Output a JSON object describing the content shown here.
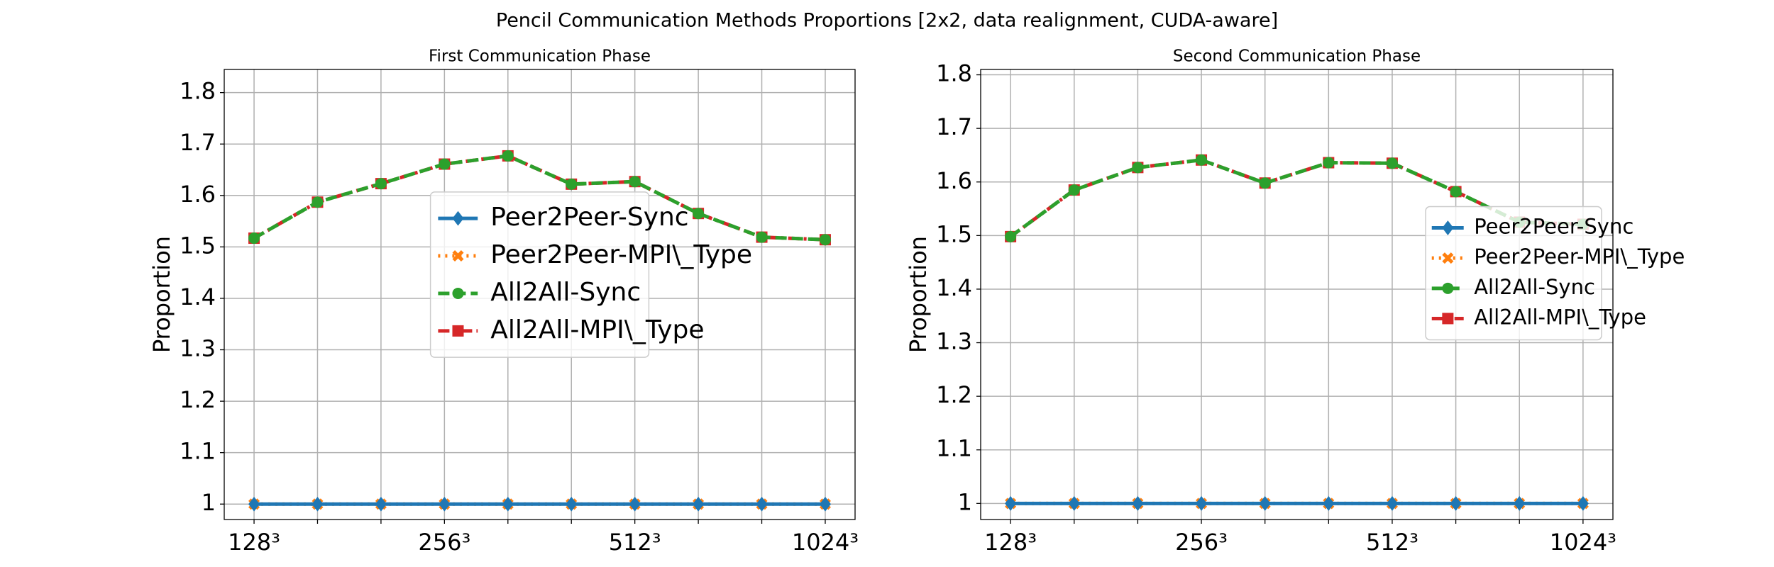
{
  "title": "Pencil Communication Methods Proportions [2x2, data realignment, CUDA-aware]",
  "chart_data": [
    {
      "type": "line",
      "title": "First Communication Phase",
      "ylabel": "Proportion",
      "categories": [
        "128³",
        null,
        null,
        "256³",
        null,
        null,
        "512³",
        null,
        null,
        "1024³"
      ],
      "series": [
        {
          "name": "Peer2Peer-Sync",
          "color": "#1f77b4",
          "values": [
            1.0,
            1.0,
            1.0,
            1.0,
            1.0,
            1.0,
            1.0,
            1.0,
            1.0,
            1.0
          ]
        },
        {
          "name": "Peer2Peer-MPI\\_Type",
          "color": "#ff7f0e",
          "values": [
            1.0,
            1.0,
            1.0,
            1.0,
            1.0,
            1.0,
            1.0,
            1.0,
            1.0,
            1.0
          ]
        },
        {
          "name": "All2All-Sync",
          "color": "#2ca02c",
          "values": [
            1.517,
            1.587,
            1.623,
            1.661,
            1.677,
            1.622,
            1.627,
            1.565,
            1.519,
            1.514
          ]
        },
        {
          "name": "All2All-MPI\\_Type",
          "color": "#d62728",
          "values": [
            1.517,
            1.587,
            1.623,
            1.661,
            1.677,
            1.622,
            1.627,
            1.565,
            1.519,
            1.514
          ]
        }
      ],
      "ylim": [
        0.97,
        1.845
      ],
      "yticks": [
        1.0,
        1.1,
        1.2,
        1.3,
        1.4,
        1.5,
        1.6,
        1.7,
        1.8
      ],
      "grid": true,
      "legend": "center"
    },
    {
      "type": "line",
      "title": "Second Communication Phase",
      "ylabel": "Proportion",
      "categories": [
        "128³",
        null,
        null,
        "256³",
        null,
        null,
        "512³",
        null,
        null,
        "1024³"
      ],
      "series": [
        {
          "name": "Peer2Peer-Sync",
          "color": "#1f77b4",
          "values": [
            1.0,
            1.0,
            1.0,
            1.0,
            1.0,
            1.0,
            1.0,
            1.0,
            1.0,
            1.0
          ]
        },
        {
          "name": "Peer2Peer-MPI\\_Type",
          "color": "#ff7f0e",
          "values": [
            1.0,
            1.0,
            1.0,
            1.0,
            1.0,
            1.0,
            1.0,
            1.0,
            1.0,
            1.0
          ]
        },
        {
          "name": "All2All-Sync",
          "color": "#2ca02c",
          "values": [
            1.498,
            1.585,
            1.627,
            1.641,
            1.598,
            1.636,
            1.635,
            1.582,
            1.525,
            1.521
          ]
        },
        {
          "name": "All2All-MPI\\_Type",
          "color": "#d62728",
          "values": [
            1.498,
            1.585,
            1.627,
            1.641,
            1.598,
            1.636,
            1.635,
            1.582,
            1.525,
            1.521
          ]
        }
      ],
      "ylim": [
        0.97,
        1.81
      ],
      "yticks": [
        1.0,
        1.1,
        1.2,
        1.3,
        1.4,
        1.5,
        1.6,
        1.7,
        1.8
      ],
      "grid": true,
      "legend": "center right"
    }
  ]
}
